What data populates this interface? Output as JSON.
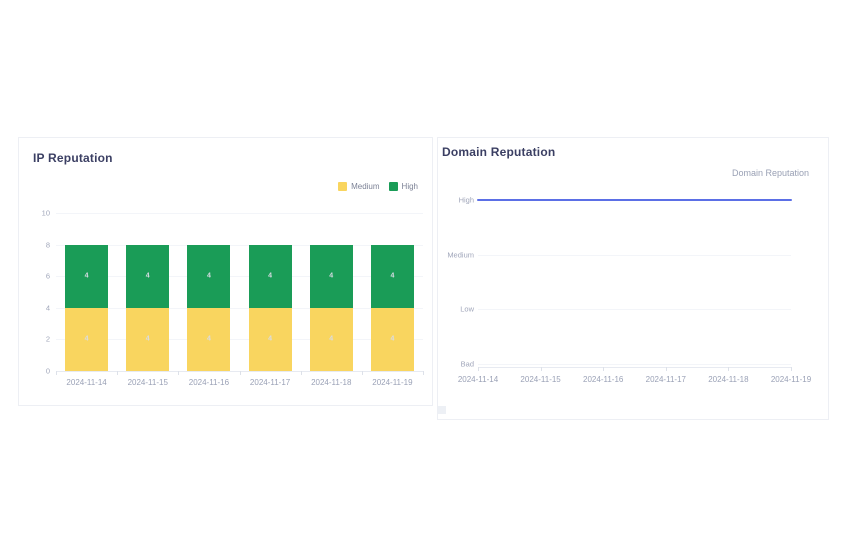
{
  "ip_card": {
    "title": "IP Reputation"
  },
  "domain_card": {
    "title": "Domain Reputation",
    "legend_label": "Domain Reputation"
  },
  "chart_data": [
    {
      "id": "ip-reputation",
      "type": "bar",
      "stacked": true,
      "title": "IP Reputation",
      "categories": [
        "2024-11-14",
        "2024-11-15",
        "2024-11-16",
        "2024-11-17",
        "2024-11-18",
        "2024-11-19"
      ],
      "series": [
        {
          "name": "Medium",
          "color": "#f9d55f",
          "values": [
            4,
            4,
            4,
            4,
            4,
            4
          ]
        },
        {
          "name": "High",
          "color": "#1a9c57",
          "values": [
            4,
            4,
            4,
            4,
            4,
            4
          ]
        }
      ],
      "ylim": [
        0,
        10
      ],
      "yticks": [
        0,
        2,
        4,
        6,
        8,
        10
      ],
      "legend_position": "top-right",
      "grid": true,
      "value_labels": true
    },
    {
      "id": "domain-reputation",
      "type": "line",
      "title": "Domain Reputation",
      "legend": [
        "Domain Reputation"
      ],
      "categories": [
        "2024-11-14",
        "2024-11-15",
        "2024-11-16",
        "2024-11-17",
        "2024-11-18",
        "2024-11-19"
      ],
      "y_categories": [
        "Bad",
        "Low",
        "Medium",
        "High"
      ],
      "series": [
        {
          "name": "Domain Reputation",
          "color": "#5b6fe6",
          "values": [
            "High",
            "High",
            "High",
            "High",
            "High",
            "High"
          ]
        }
      ],
      "grid": true,
      "legend_position": "top-right"
    }
  ]
}
